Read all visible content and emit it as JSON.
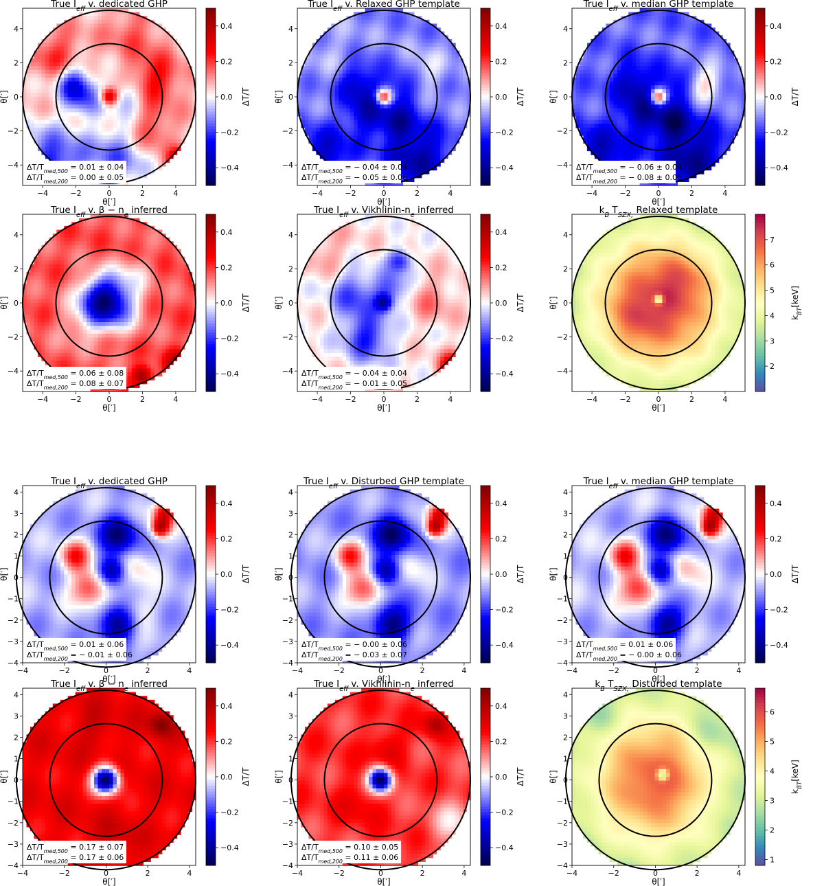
{
  "colorbar_tick_labels_dT": [
    "0.4",
    "0.2",
    "0.0",
    "−0.2",
    "−0.4"
  ],
  "chart_data": [
    {
      "type": "heatmap",
      "title": "True I_eff v. dedicated GHP",
      "xlabel": "θ[′]",
      "ylabel": "θ[′]",
      "xticks": [
        -4,
        -2,
        0,
        2,
        4
      ],
      "yticks": [
        4,
        2,
        0,
        -2,
        -4
      ],
      "colorbar": {
        "label": "ΔT/T",
        "ticks": [
          0.4,
          0.2,
          0.0,
          -0.2,
          -0.4
        ],
        "range": [
          -0.5,
          0.5
        ],
        "cmap": "seismic"
      },
      "circles_radius": [
        3.2,
        5.2
      ],
      "annotation": [
        "ΔT/T_med,500 = 0.01 ± 0.04",
        "ΔT/T_med,200 = 0.00 ± 0.05"
      ],
      "field": {
        "base": 0.06,
        "core": 0.35,
        "blobs": [
          [
            -2.2,
            0.8,
            -0.25,
            0.7
          ],
          [
            -1.5,
            0.0,
            -0.2,
            0.8
          ],
          [
            1.0,
            0.0,
            -0.15,
            0.7
          ],
          [
            2.8,
            1.0,
            0.2,
            1.0
          ],
          [
            -3.5,
            -4.0,
            -0.3,
            1.5
          ],
          [
            0.5,
            -3.5,
            -0.2,
            1.3
          ],
          [
            2.5,
            -2.0,
            0.15,
            0.9
          ],
          [
            -3.2,
            2.5,
            0.15,
            1.0
          ],
          [
            1.5,
            3.8,
            0.1,
            1.2
          ],
          [
            4.3,
            -3.8,
            0.4,
            0.5
          ]
        ]
      }
    },
    {
      "type": "heatmap",
      "title": "True I_eff v. Relaxed GHP template",
      "xlabel": "θ[′]",
      "ylabel": "θ[′]",
      "xticks": [
        -4,
        -2,
        0,
        2,
        4
      ],
      "yticks": [
        4,
        2,
        0,
        -2,
        -4
      ],
      "colorbar": {
        "label": "ΔT/T",
        "ticks": [
          0.4,
          0.2,
          0.0,
          -0.2,
          -0.4
        ],
        "range": [
          -0.5,
          0.5
        ],
        "cmap": "seismic"
      },
      "circles_radius": [
        3.2,
        5.2
      ],
      "annotation": [
        "ΔT/T_med,500 = − 0.04 ± 0.04",
        "ΔT/T_med,200 = − 0.05 ± 0.06"
      ],
      "field": {
        "base": -0.12,
        "core": 0.45,
        "blobs": [
          [
            -1.5,
            0.8,
            -0.2,
            0.9
          ],
          [
            -1.0,
            -1.0,
            -0.2,
            0.8
          ],
          [
            1.0,
            0.5,
            -0.15,
            0.8
          ],
          [
            0.8,
            -1.5,
            -0.2,
            0.7
          ],
          [
            2.5,
            1.5,
            0.1,
            0.8
          ],
          [
            2.0,
            -3.5,
            -0.25,
            1.4
          ],
          [
            -3.5,
            -3.5,
            -0.2,
            1.3
          ],
          [
            -3.0,
            2.5,
            0.05,
            1.1
          ]
        ]
      }
    },
    {
      "type": "heatmap",
      "title": "True I_eff v. median GHP template",
      "xlabel": "θ[′]",
      "ylabel": "θ[′]",
      "xticks": [
        -4,
        -2,
        0,
        2,
        4
      ],
      "yticks": [
        4,
        2,
        0,
        -2,
        -4
      ],
      "colorbar": {
        "label": "ΔT/T",
        "ticks": [
          0.4,
          0.2,
          0.0,
          -0.2,
          -0.4
        ],
        "range": [
          -0.5,
          0.5
        ],
        "cmap": "seismic"
      },
      "circles_radius": [
        3.2,
        5.2
      ],
      "annotation": [
        "ΔT/T_med,500 = − 0.06 ± 0.04",
        "ΔT/T_med,200 = − 0.08 ± 0.06"
      ],
      "field": {
        "base": -0.15,
        "core": 0.45,
        "blobs": [
          [
            -1.5,
            0.8,
            -0.2,
            0.9
          ],
          [
            -1.0,
            -1.0,
            -0.2,
            0.8
          ],
          [
            1.0,
            0.5,
            -0.15,
            0.8
          ],
          [
            0.8,
            -1.5,
            -0.25,
            0.7
          ],
          [
            2.8,
            0.8,
            0.2,
            0.8
          ],
          [
            2.0,
            -3.5,
            -0.25,
            1.4
          ],
          [
            -3.5,
            -3.5,
            -0.2,
            1.3
          ]
        ]
      }
    },
    {
      "type": "heatmap",
      "title": "True I_eff v. β − n_e inferred",
      "xlabel": "θ[′]",
      "ylabel": "θ[′]",
      "xticks": [
        -4,
        -2,
        0,
        2,
        4
      ],
      "yticks": [
        4,
        2,
        0,
        -2,
        -4
      ],
      "colorbar": {
        "label": "ΔT/T",
        "ticks": [
          0.4,
          0.2,
          0.0,
          -0.2,
          -0.4
        ],
        "range": [
          -0.5,
          0.5
        ],
        "cmap": "seismic"
      },
      "circles_radius": [
        3.2,
        5.2
      ],
      "annotation": [
        "ΔT/T_med,500 = 0.06 ± 0.08",
        "ΔT/T_med,200 = 0.08 ± 0.07"
      ],
      "field": {
        "base": 0.17,
        "core": -0.5,
        "coreSigma": 1.1,
        "blobs": [
          [
            -0.8,
            0.3,
            -0.15,
            0.9
          ],
          [
            -2.0,
            -1.5,
            -0.08,
            0.9
          ],
          [
            1.5,
            1.8,
            -0.08,
            0.8
          ],
          [
            4.2,
            -3.6,
            0.3,
            0.5
          ],
          [
            2.0,
            -4.3,
            0.3,
            0.4
          ]
        ]
      }
    },
    {
      "type": "heatmap",
      "title": "True I_eff v. Vikhlinin-n_e inferred",
      "xlabel": "θ[′]",
      "ylabel": "θ[′]",
      "xticks": [
        -4,
        -2,
        0,
        2,
        4
      ],
      "yticks": [
        4,
        2,
        0,
        -2,
        -4
      ],
      "colorbar": {
        "label": "ΔT/T",
        "ticks": [
          0.4,
          0.2,
          0.0,
          -0.2,
          -0.4
        ],
        "range": [
          -0.5,
          0.5
        ],
        "cmap": "seismic"
      },
      "circles_radius": [
        3.2,
        5.2
      ],
      "annotation": [
        "ΔT/T_med,500 = − 0.04 ± 0.04",
        "ΔT/T_med,200 = − 0.01 ± 0.05"
      ],
      "field": {
        "base": 0.02,
        "core": -0.3,
        "blobs": [
          [
            -1.8,
            0.5,
            -0.2,
            1.0
          ],
          [
            -1.0,
            -2.0,
            -0.25,
            1.0
          ],
          [
            0.5,
            0.8,
            -0.2,
            0.7
          ],
          [
            1.0,
            2.5,
            -0.25,
            0.5
          ],
          [
            2.8,
            0.2,
            0.1,
            1.0
          ],
          [
            -3.5,
            3.0,
            0.08,
            1.0
          ],
          [
            4.2,
            -3.8,
            0.35,
            0.6
          ]
        ]
      }
    },
    {
      "type": "heatmap",
      "title": "k_B T_SZX, Relaxed template",
      "xlabel": "θ[′]",
      "ylabel": "θ[′]",
      "xticks": [
        -4,
        -2,
        0,
        2,
        4
      ],
      "yticks": [
        4,
        2,
        0,
        -2,
        -4
      ],
      "colorbar": {
        "label": "k_BT[keV]",
        "ticks": [
          7,
          6,
          5,
          4,
          3,
          2
        ],
        "range": [
          1,
          8
        ],
        "cmap": "spectral_r"
      },
      "circles_radius": [
        3.2,
        5.2
      ],
      "annotation": [],
      "field": {
        "type": "temperature",
        "peak": 7.2,
        "scale": 3.0,
        "floor": 2.6,
        "holeAmp": 3.5,
        "holeX": 0.0,
        "holeY": 0.2,
        "lumps": [
          [
            1.5,
            1.5,
            0.8,
            1.0
          ],
          [
            -1.5,
            -1.0,
            0.6,
            1.0
          ]
        ]
      }
    },
    {
      "type": "heatmap",
      "title": "True I_eff v. dedicated GHP",
      "xlabel": "θ[′]",
      "ylabel": "θ[′]",
      "xticks": [
        -4,
        -2,
        0,
        2,
        4
      ],
      "yticks": [
        4,
        3,
        2,
        1,
        0,
        -1,
        -2,
        -3,
        -4
      ],
      "colorbar": {
        "label": "ΔT/T",
        "ticks": [
          0.4,
          0.2,
          0.0,
          -0.2,
          -0.4
        ],
        "range": [
          -0.5,
          0.5
        ],
        "cmap": "seismic"
      },
      "circles_radius": [
        2.7,
        4.3
      ],
      "annotation": [
        "ΔT/T_med,500 = 0.01 ± 0.06",
        "ΔT/T_med,200 = − 0.01 ± 0.06"
      ],
      "field": {
        "base": -0.08,
        "core": 0.0,
        "blobs": [
          [
            0.6,
            2.0,
            -0.35,
            0.6
          ],
          [
            0.3,
            0.3,
            -0.35,
            0.45
          ],
          [
            -1.5,
            1.0,
            0.3,
            0.5
          ],
          [
            -0.8,
            -0.5,
            0.3,
            0.6
          ],
          [
            0.5,
            -2.2,
            -0.35,
            0.6
          ],
          [
            1.5,
            0.5,
            0.12,
            0.6
          ],
          [
            2.8,
            3.0,
            0.4,
            0.4
          ],
          [
            2.6,
            2.3,
            0.4,
            0.3
          ],
          [
            1.5,
            -1.5,
            0.1,
            0.6
          ]
        ]
      }
    },
    {
      "type": "heatmap",
      "title": "True I_eff v. Disturbed GHP template",
      "xlabel": "θ[′]",
      "ylabel": "θ[′]",
      "xticks": [
        -4,
        -2,
        0,
        2,
        4
      ],
      "yticks": [
        4,
        3,
        2,
        1,
        0,
        -1,
        -2,
        -3,
        -4
      ],
      "colorbar": {
        "label": "ΔT/T",
        "ticks": [
          0.4,
          0.2,
          0.0,
          -0.2,
          -0.4
        ],
        "range": [
          -0.5,
          0.5
        ],
        "cmap": "seismic"
      },
      "circles_radius": [
        2.7,
        4.3
      ],
      "annotation": [
        "ΔT/T_med,500 = − 0.00 ± 0.06",
        "ΔT/T_med,200 = − 0.03 ± 0.07"
      ],
      "field": {
        "base": -0.1,
        "core": 0.0,
        "blobs": [
          [
            0.6,
            2.0,
            -0.35,
            0.6
          ],
          [
            0.3,
            0.3,
            -0.35,
            0.45
          ],
          [
            -1.5,
            1.0,
            0.3,
            0.5
          ],
          [
            -0.8,
            -0.5,
            0.32,
            0.6
          ],
          [
            0.5,
            -2.2,
            -0.35,
            0.6
          ],
          [
            1.5,
            0.5,
            0.12,
            0.6
          ],
          [
            2.8,
            3.0,
            0.4,
            0.4
          ],
          [
            2.6,
            2.3,
            0.4,
            0.3
          ]
        ]
      }
    },
    {
      "type": "heatmap",
      "title": "True I_eff v. median GHP template",
      "xlabel": "θ[′]",
      "ylabel": "θ[′]",
      "xticks": [
        -4,
        -2,
        0,
        2,
        4
      ],
      "yticks": [
        4,
        3,
        2,
        1,
        0,
        -1,
        -2,
        -3,
        -4
      ],
      "colorbar": {
        "label": "ΔT/T",
        "ticks": [
          0.4,
          0.2,
          0.0,
          -0.2,
          -0.4
        ],
        "range": [
          -0.5,
          0.5
        ],
        "cmap": "seismic"
      },
      "circles_radius": [
        2.7,
        4.3
      ],
      "annotation": [
        "ΔT/T_med,500 = 0.01 ± 0.06",
        "ΔT/T_med,200 = − 0.00 ± 0.06"
      ],
      "field": {
        "base": -0.07,
        "core": 0.0,
        "blobs": [
          [
            0.6,
            2.0,
            -0.35,
            0.6
          ],
          [
            0.3,
            0.3,
            -0.35,
            0.45
          ],
          [
            -1.5,
            1.0,
            0.3,
            0.5
          ],
          [
            -0.8,
            -0.5,
            0.32,
            0.6
          ],
          [
            0.5,
            -2.2,
            -0.35,
            0.6
          ],
          [
            1.5,
            0.5,
            0.15,
            0.6
          ],
          [
            2.8,
            3.0,
            0.4,
            0.4
          ],
          [
            2.6,
            2.3,
            0.4,
            0.3
          ]
        ]
      }
    },
    {
      "type": "heatmap",
      "title": "True I_eff v. β − n_e inferred",
      "xlabel": "θ[′]",
      "ylabel": "θ[′]",
      "xticks": [
        -4,
        -2,
        0,
        2,
        4
      ],
      "yticks": [
        4,
        3,
        2,
        1,
        0,
        -1,
        -2,
        -3,
        -4
      ],
      "colorbar": {
        "label": "ΔT/T",
        "ticks": [
          0.4,
          0.2,
          0.0,
          -0.2,
          -0.4
        ],
        "range": [
          -0.5,
          0.5
        ],
        "cmap": "seismic"
      },
      "circles_radius": [
        2.7,
        4.3
      ],
      "annotation": [
        "ΔT/T_med,500 = 0.17 ± 0.07",
        "ΔT/T_med,200 = 0.17 ± 0.06"
      ],
      "field": {
        "base": 0.28,
        "core": -0.75,
        "coreSigma": 0.45,
        "blobs": [
          [
            2.6,
            2.6,
            0.2,
            0.4
          ],
          [
            -0.5,
            2.5,
            0.08,
            0.6
          ],
          [
            0.5,
            -2.5,
            0.06,
            0.6
          ]
        ]
      }
    },
    {
      "type": "heatmap",
      "title": "True I_eff v. Vikhlinin-n_e inferred",
      "xlabel": "θ[′]",
      "ylabel": "θ[′]",
      "xticks": [
        -4,
        -2,
        0,
        2,
        4
      ],
      "yticks": [
        4,
        3,
        2,
        1,
        0,
        -1,
        -2,
        -3,
        -4
      ],
      "colorbar": {
        "label": "ΔT/T",
        "ticks": [
          0.4,
          0.2,
          0.0,
          -0.2,
          -0.4
        ],
        "range": [
          -0.5,
          0.5
        ],
        "cmap": "seismic"
      },
      "circles_radius": [
        2.7,
        4.3
      ],
      "annotation": [
        "ΔT/T_med,500 = 0.10 ± 0.05",
        "ΔT/T_med,200 = 0.11 ± 0.06"
      ],
      "field": {
        "base": 0.2,
        "core": -0.7,
        "coreSigma": 0.4,
        "blobs": [
          [
            2.6,
            2.6,
            0.2,
            0.4
          ],
          [
            0.3,
            1.5,
            0.12,
            0.6
          ],
          [
            -1.0,
            -1.0,
            0.08,
            0.8
          ],
          [
            3.5,
            -2.0,
            -0.15,
            0.8
          ]
        ]
      }
    },
    {
      "type": "heatmap",
      "title": "k_B T_SZX, Disturbed template",
      "xlabel": "θ[′]",
      "ylabel": "θ[′]",
      "xticks": [
        -4,
        -2,
        0,
        2,
        4
      ],
      "yticks": [
        4,
        3,
        2,
        1,
        0,
        -1,
        -2,
        -3,
        -4
      ],
      "colorbar": {
        "label": "k_BT[keV]",
        "ticks": [
          6,
          5,
          4,
          3,
          2,
          1
        ],
        "range": [
          0.8,
          6.8
        ],
        "cmap": "spectral_r"
      },
      "circles_radius": [
        2.7,
        4.3
      ],
      "annotation": [],
      "field": {
        "type": "temperature",
        "peak": 5.8,
        "scale": 2.2,
        "floor": 2.5,
        "holeAmp": 3.0,
        "holeX": 0.35,
        "holeY": 0.25,
        "lumps": [
          [
            2.5,
            2.0,
            -0.8,
            0.7
          ],
          [
            -2.5,
            3.0,
            -0.5,
            0.6
          ],
          [
            2.8,
            -1.0,
            -0.4,
            0.7
          ]
        ]
      }
    }
  ]
}
